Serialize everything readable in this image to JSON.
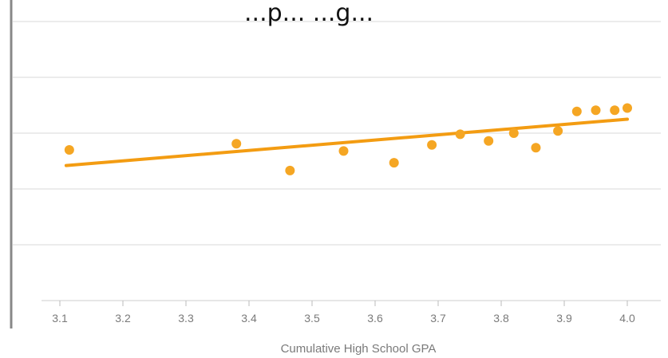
{
  "chart_data": {
    "type": "scatter",
    "title": "...p... ...g...",
    "xlabel": "Cumulative High School GPA",
    "ylabel": "",
    "xlim": [
      3.07,
      4.05
    ],
    "ylim": [
      0,
      5
    ],
    "x_ticks": [
      "3.1",
      "3.2",
      "3.3",
      "3.4",
      "3.5",
      "3.6",
      "3.7",
      "3.8",
      "3.9",
      "4.0"
    ],
    "grid": true,
    "legend": "none",
    "colors": {
      "points": "#f5a623",
      "trend": "#f39c12",
      "grid": "#e6e6e6",
      "axis": "#888888",
      "tick_text": "#7a7a7a"
    },
    "series": [
      {
        "x": [
          3.115,
          3.38,
          3.465,
          3.55,
          3.63,
          3.69,
          3.735,
          3.78,
          3.82,
          3.855,
          3.89,
          3.92,
          3.95,
          3.98,
          4.0
        ],
        "y": [
          2.7,
          2.81,
          2.33,
          2.68,
          2.47,
          2.79,
          2.98,
          2.86,
          3.0,
          2.74,
          3.04,
          3.39,
          3.41,
          3.41,
          3.45
        ]
      }
    ],
    "trendline": {
      "x": [
        3.11,
        4.0
      ],
      "y": [
        2.42,
        3.25
      ]
    }
  }
}
